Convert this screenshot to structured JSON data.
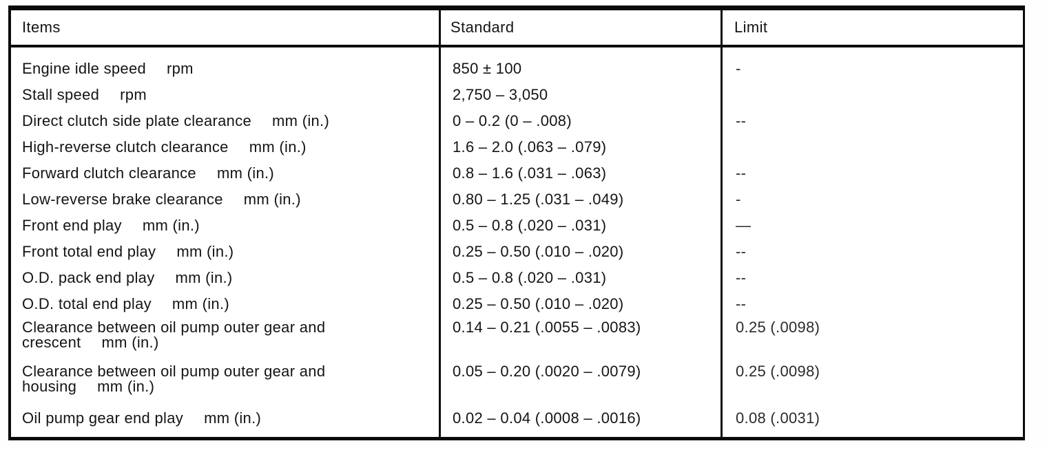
{
  "header": {
    "items": "Items",
    "standard": "Standard",
    "limit": "Limit"
  },
  "table": {
    "rows": [
      {
        "item": "Engine idle speed",
        "unit": "rpm",
        "standard": "850 ± 100",
        "limit": "-"
      },
      {
        "item": "Stall speed",
        "unit": "rpm",
        "standard": "2,750 – 3,050",
        "limit": ""
      },
      {
        "item": "Direct clutch side plate clearance",
        "unit": "mm (in.)",
        "standard": "0 – 0.2 (0 – .008)",
        "limit": "--"
      },
      {
        "item": "High-reverse clutch clearance",
        "unit": "mm (in.)",
        "standard": "1.6 – 2.0 (.063 – .079)",
        "limit": ""
      },
      {
        "item": "Forward clutch clearance",
        "unit": "mm (in.)",
        "standard": "0.8 – 1.6 (.031 – .063)",
        "limit": "--"
      },
      {
        "item": "Low-reverse brake clearance",
        "unit": "mm (in.)",
        "standard": "0.80 – 1.25 (.031 – .049)",
        "limit": "-"
      },
      {
        "item": "Front end play",
        "unit": "mm (in.)",
        "standard": "0.5 – 0.8 (.020 – .031)",
        "limit": "—"
      },
      {
        "item": "Front total end play",
        "unit": "mm (in.)",
        "standard": "0.25 – 0.50 (.010 – .020)",
        "limit": "--"
      },
      {
        "item": "O.D. pack end play",
        "unit": "mm (in.)",
        "standard": "0.5 – 0.8 (.020 – .031)",
        "limit": "--"
      },
      {
        "item": "O.D. total end play",
        "unit": "mm (in.)",
        "standard": "0.25 – 0.50 (.010 – .020)",
        "limit": "--"
      },
      {
        "item": "Clearance between oil pump outer gear and",
        "item_line2": "crescent",
        "unit": "mm (in.)",
        "standard": "0.14 – 0.21 (.0055 – .0083)",
        "limit": "0.25 (.0098)"
      },
      {
        "item": "Clearance between oil pump outer gear and",
        "item_line2": "housing",
        "unit": "mm (in.)",
        "standard": "0.05 – 0.20 (.0020 – .0079)",
        "limit": "0.25 (.0098)"
      },
      {
        "item": "Oil pump gear end play",
        "unit": "mm (in.)",
        "standard": "0.02 – 0.04 (.0008 – .0016)",
        "limit": "0.08 (.0031)"
      }
    ]
  }
}
